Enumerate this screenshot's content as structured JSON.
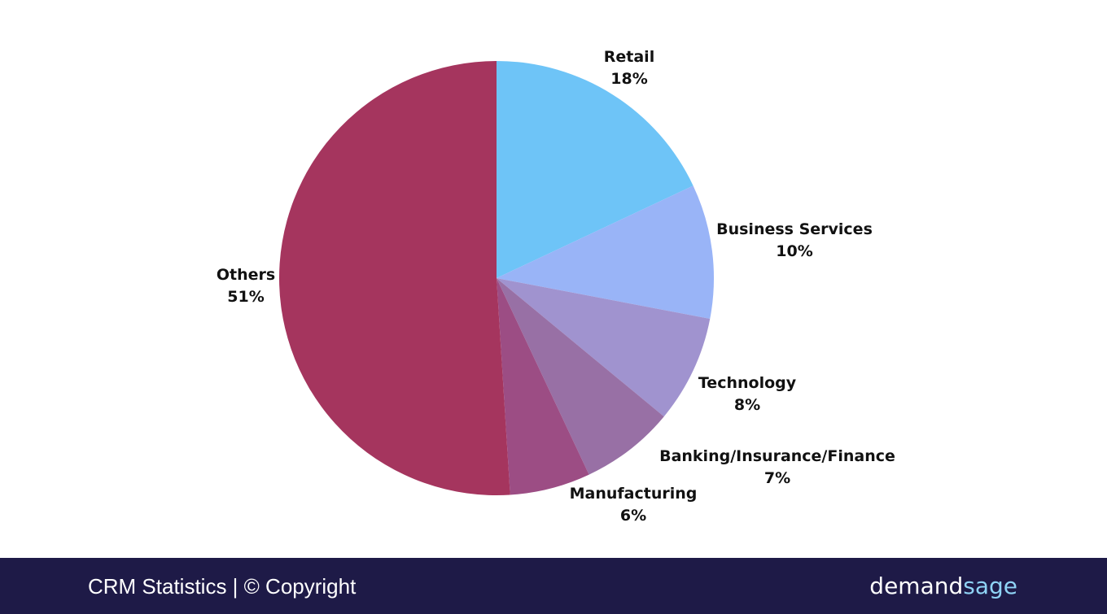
{
  "chart_data": {
    "type": "pie",
    "categories": [
      "Retail",
      "Business Services",
      "Technology",
      "Banking/Insurance/Finance",
      "Manufacturing",
      "Others"
    ],
    "values": [
      18,
      10,
      8,
      7,
      6,
      51
    ],
    "value_labels": [
      "18%",
      "10%",
      "8%",
      "7%",
      "6%",
      "51%"
    ],
    "colors": [
      "#6ec4f7",
      "#99b4f7",
      "#a093cf",
      "#9870a5",
      "#9c4d84",
      "#a5355e"
    ]
  },
  "footer": {
    "caption": "CRM Statistics | © Copyright",
    "brand_first": "demand",
    "brand_second": "sage"
  }
}
